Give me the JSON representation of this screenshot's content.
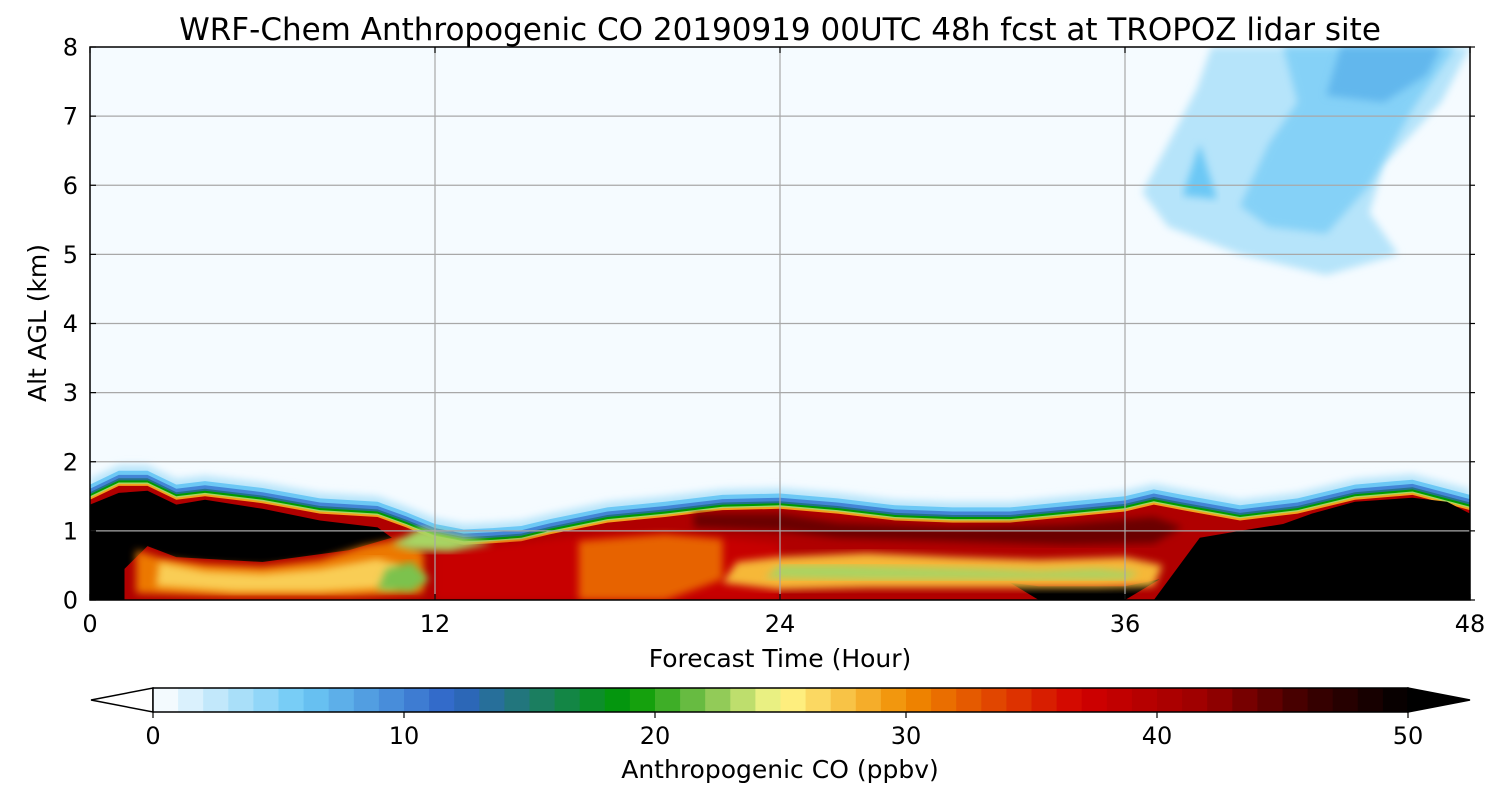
{
  "chart_data": {
    "type": "heatmap",
    "title": "WRF-Chem Anthropogenic CO 20190919 00UTC 48h fcst at TROPOZ lidar site",
    "xlabel": "Forecast Time (Hour)",
    "ylabel": "Alt AGL (km)",
    "xlim": [
      0,
      48
    ],
    "ylim": [
      0,
      8
    ],
    "xticks": [
      {
        "value": 0,
        "label": "0"
      },
      {
        "value": 12,
        "label": "12"
      },
      {
        "value": 24,
        "label": "24"
      },
      {
        "value": 36,
        "label": "36"
      },
      {
        "value": 48,
        "label": "48"
      }
    ],
    "yticks": [
      {
        "value": 0,
        "label": "0"
      },
      {
        "value": 1,
        "label": "1"
      },
      {
        "value": 2,
        "label": "2"
      },
      {
        "value": 3,
        "label": "3"
      },
      {
        "value": 4,
        "label": "4"
      },
      {
        "value": 5,
        "label": "5"
      },
      {
        "value": 6,
        "label": "6"
      },
      {
        "value": 7,
        "label": "7"
      },
      {
        "value": 8,
        "label": "8"
      }
    ],
    "grid": true,
    "colorbar": {
      "label": "Anthropogenic CO  (ppbv)",
      "min": 0,
      "max": 50,
      "extend": "both",
      "ticks": [
        {
          "value": 0,
          "label": "0"
        },
        {
          "value": 10,
          "label": "10"
        },
        {
          "value": 20,
          "label": "20"
        },
        {
          "value": 30,
          "label": "30"
        },
        {
          "value": 40,
          "label": "40"
        },
        {
          "value": 50,
          "label": "50"
        }
      ],
      "stops": [
        {
          "value": 0,
          "color": "#ffffff"
        },
        {
          "value": 6,
          "color": "#6cc8f5"
        },
        {
          "value": 12,
          "color": "#2e63c6"
        },
        {
          "value": 15,
          "color": "#1f7a6e"
        },
        {
          "value": 19,
          "color": "#009a00"
        },
        {
          "value": 22,
          "color": "#7cc24e"
        },
        {
          "value": 25,
          "color": "#fff98c"
        },
        {
          "value": 30,
          "color": "#f08c00"
        },
        {
          "value": 37,
          "color": "#d20000"
        },
        {
          "value": 42,
          "color": "#9a0000"
        },
        {
          "value": 46,
          "color": "#3c0000"
        },
        {
          "value": 50,
          "color": "#000000"
        }
      ],
      "under_color": "#ffffff",
      "over_color": "#000000"
    },
    "field": {
      "description_units": "ppbv",
      "hours": [
        0,
        1,
        2,
        3,
        4,
        6,
        8,
        10,
        11,
        12,
        13,
        14,
        15,
        16,
        18,
        20,
        22,
        24,
        26,
        28,
        30,
        32,
        34,
        36,
        37,
        38,
        40,
        42,
        44,
        46,
        48
      ],
      "boundary_layer_top_km": [
        1.45,
        1.65,
        1.65,
        1.45,
        1.5,
        1.4,
        1.25,
        1.2,
        1.05,
        0.88,
        0.8,
        0.82,
        0.85,
        0.95,
        1.12,
        1.2,
        1.3,
        1.32,
        1.25,
        1.15,
        1.12,
        1.12,
        1.2,
        1.28,
        1.38,
        1.3,
        1.15,
        1.25,
        1.45,
        1.52,
        1.3
      ],
      "background_ppbv": 1,
      "upper_plume_ppbv": 4
    }
  }
}
